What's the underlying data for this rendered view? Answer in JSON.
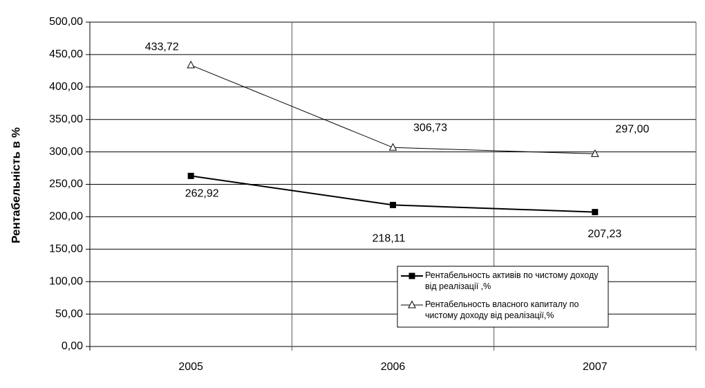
{
  "chart_data": {
    "type": "line",
    "y_label": "Рентабельність в %",
    "categories": [
      "2005",
      "2006",
      "2007"
    ],
    "series": [
      {
        "name": "Рентабельность активів по чистому доходу від реалізації ,%",
        "color": "#000000",
        "marker": "square",
        "values": [
          262.92,
          218.11,
          207.23
        ],
        "value_labels": [
          "262,92",
          "218,11",
          "207,23"
        ]
      },
      {
        "name": "Рентабельность власного капиталу  по чистому доходу від реалізації,%",
        "color": "#000000",
        "marker": "triangle",
        "values": [
          433.72,
          306.73,
          297.0
        ],
        "value_labels": [
          "433,72",
          "306,73",
          "297,00"
        ]
      }
    ],
    "ylim": [
      0,
      500
    ],
    "yticks": [
      {
        "value": 0,
        "label": "0,00"
      },
      {
        "value": 50,
        "label": "50,00"
      },
      {
        "value": 100,
        "label": "100,00"
      },
      {
        "value": 150,
        "label": "150,00"
      },
      {
        "value": 200,
        "label": "200,00"
      },
      {
        "value": 250,
        "label": "250,00"
      },
      {
        "value": 300,
        "label": "300,00"
      },
      {
        "value": 350,
        "label": "350,00"
      },
      {
        "value": 400,
        "label": "400,00"
      },
      {
        "value": 450,
        "label": "450,00"
      },
      {
        "value": 500,
        "label": "500,00"
      }
    ],
    "grid": true
  }
}
